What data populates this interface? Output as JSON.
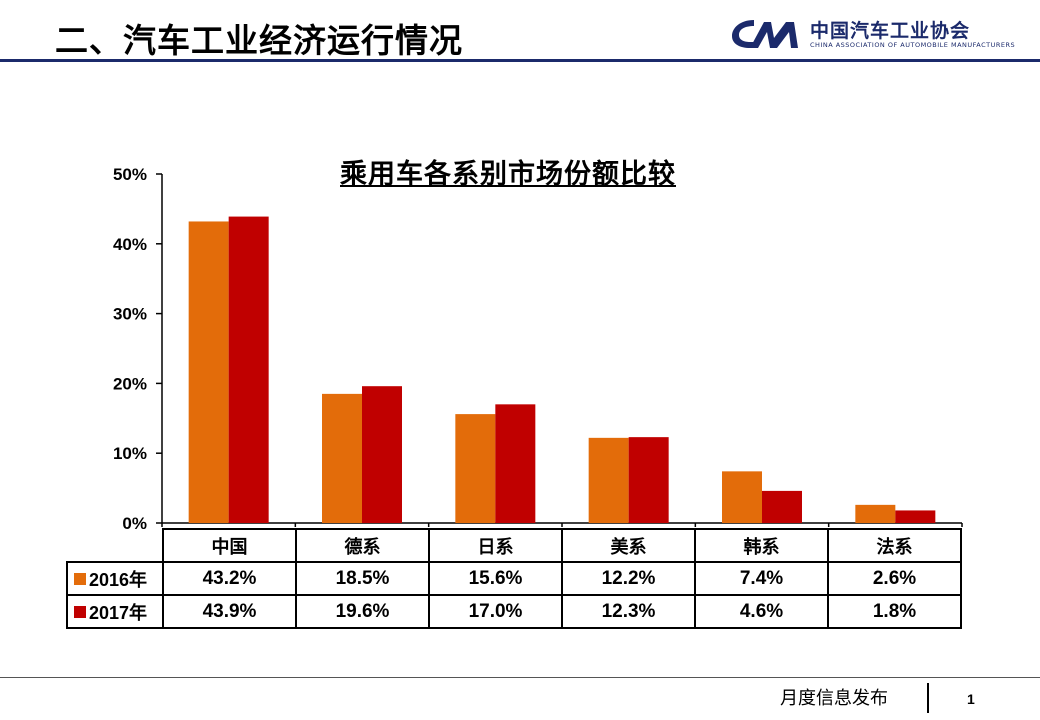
{
  "header": {
    "title": "二、汽车工业经济运行情况",
    "logo": {
      "icon": "cam-logo-icon",
      "name_cn": "中国汽车工业协会",
      "name_en": "CHINA ASSOCIATION OF AUTOMOBILE MANUFACTURERS"
    },
    "rule_color": "#1b2a6b"
  },
  "chart_data": {
    "type": "bar",
    "title": "乘用车各系别市场份额比较",
    "categories": [
      "中国",
      "德系",
      "日系",
      "美系",
      "韩系",
      "法系"
    ],
    "series": [
      {
        "name": "2016年",
        "color": "#e36c0a",
        "values": [
          43.2,
          18.5,
          15.6,
          12.2,
          7.4,
          2.6
        ],
        "labels": [
          "43.2%",
          "18.5%",
          "15.6%",
          "12.2%",
          "7.4%",
          "2.6%"
        ]
      },
      {
        "name": "2017年",
        "color": "#c00000",
        "values": [
          43.9,
          19.6,
          17.0,
          12.3,
          4.6,
          1.8
        ],
        "labels": [
          "43.9%",
          "19.6%",
          "17.0%",
          "12.3%",
          "4.6%",
          "1.8%"
        ]
      }
    ],
    "ylim": [
      0,
      50
    ],
    "yticks": [
      0,
      10,
      20,
      30,
      40,
      50
    ],
    "ytick_labels": [
      "0%",
      "10%",
      "20%",
      "30%",
      "40%",
      "50%"
    ],
    "grid": false,
    "legend": "data table below chart"
  },
  "footer": {
    "text": "月度信息发布",
    "page": "1"
  }
}
